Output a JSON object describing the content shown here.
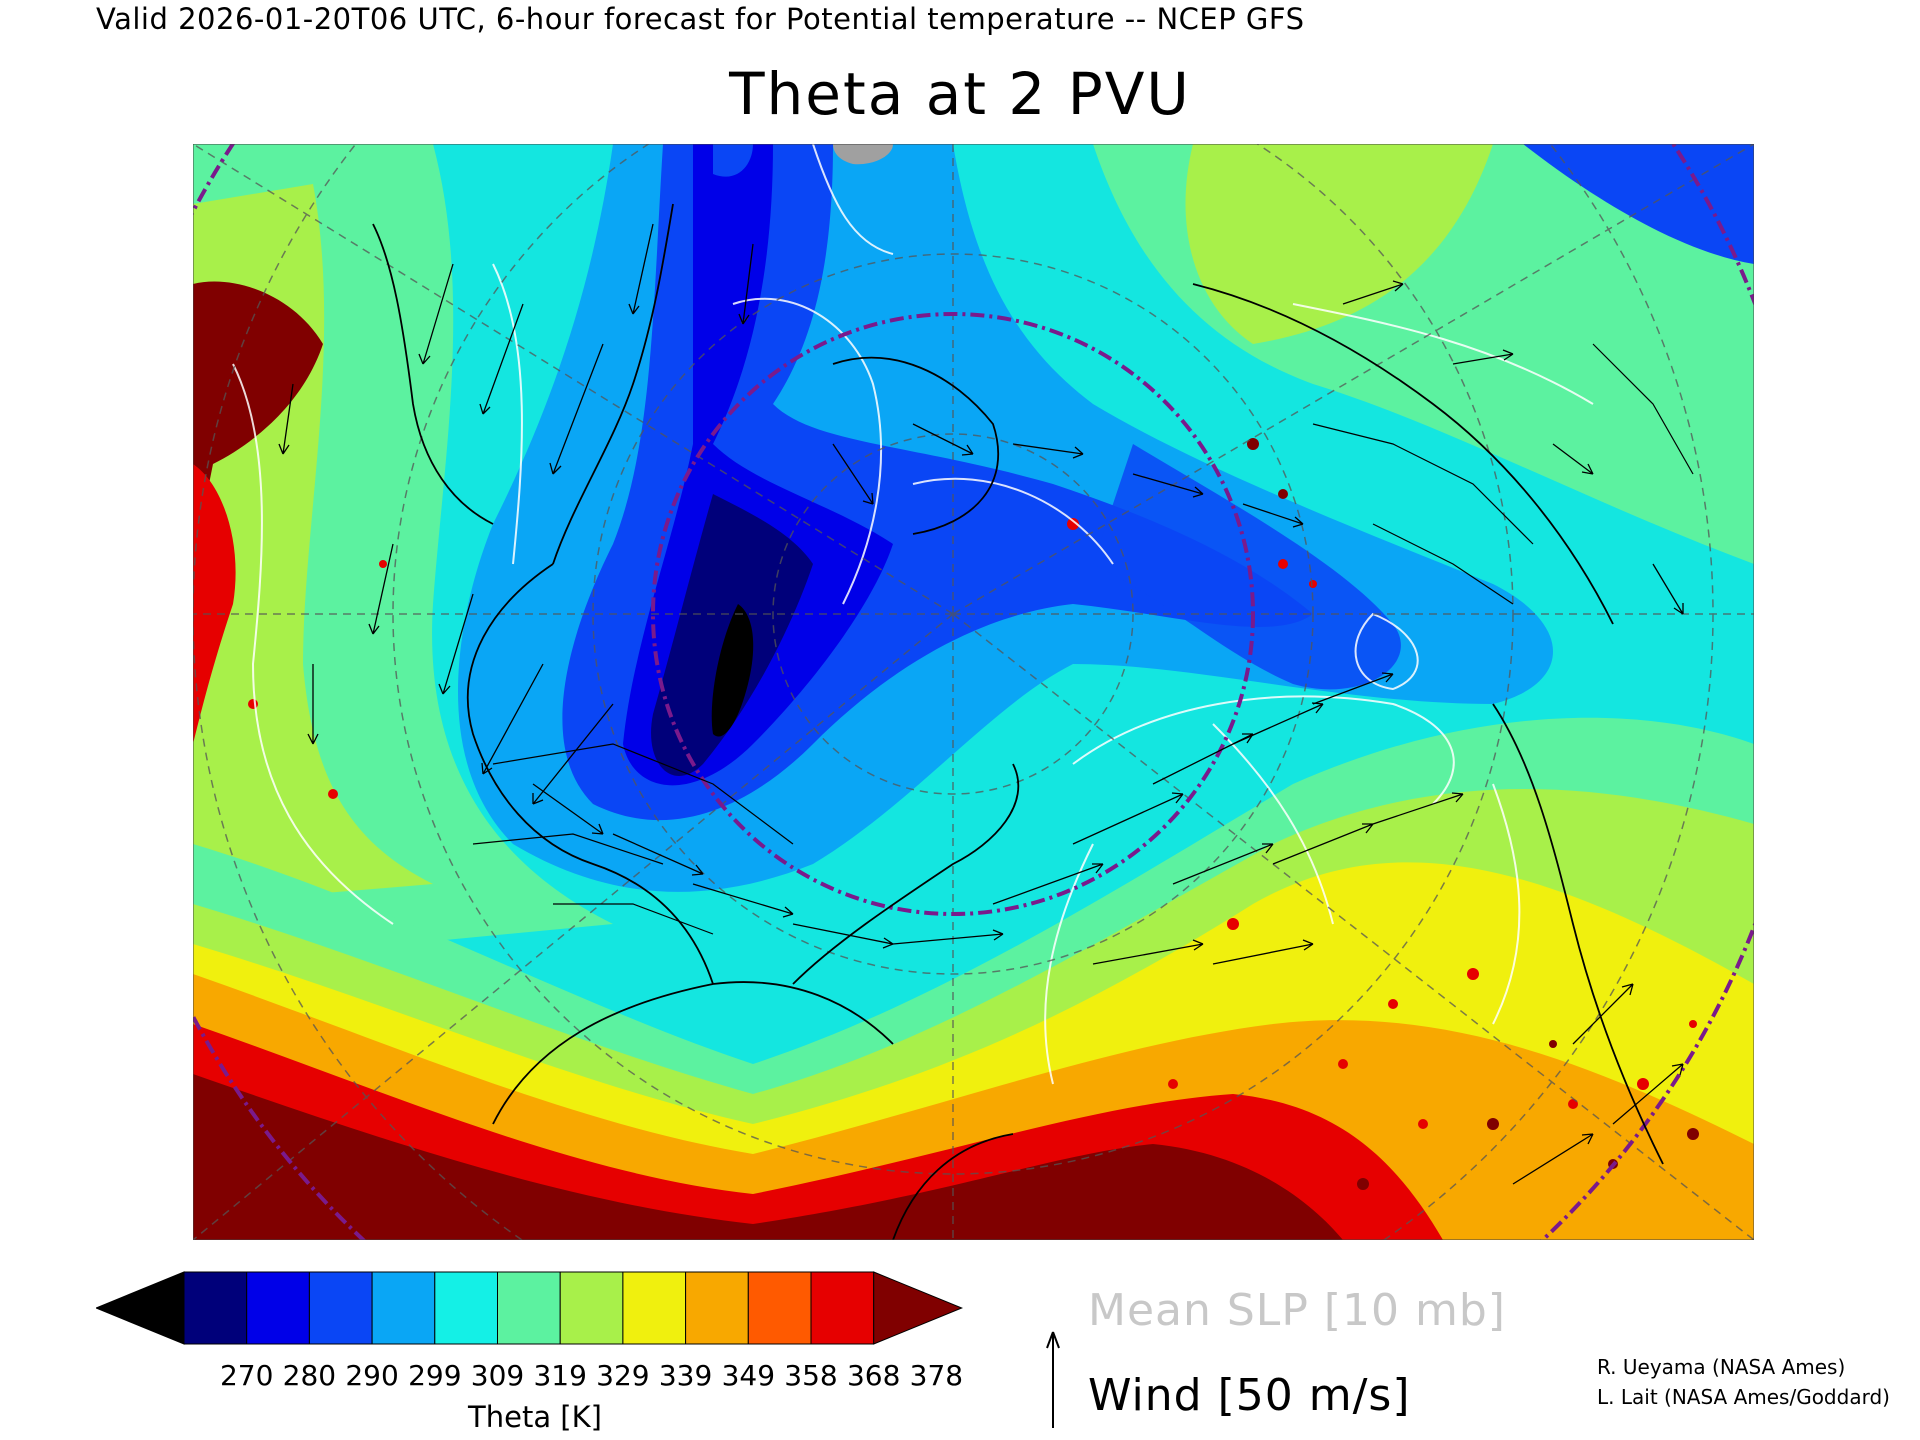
{
  "header": "Valid 2026-01-20T06 UTC, 6-hour forecast for Potential temperature -- NCEP GFS",
  "title": "Theta at 2 PVU",
  "colorbar": {
    "title": "Theta [K]",
    "ticks": [
      "270",
      "280",
      "290",
      "299",
      "309",
      "319",
      "329",
      "339",
      "349",
      "358",
      "368",
      "378"
    ],
    "colors": [
      "#000000",
      "#00007a",
      "#0000e8",
      "#0a46f5",
      "#0aa6f5",
      "#14f0e6",
      "#5cf2a0",
      "#a8f04a",
      "#f0f00e",
      "#f8a800",
      "#ff5a00",
      "#e60000",
      "#800000"
    ]
  },
  "legend": {
    "slp": "Mean SLP [10 mb]",
    "wind": "Wind [50 m/s]"
  },
  "credits": [
    "R. Ueyama (NASA Ames)",
    "L. Lait (NASA Ames/Goddard)"
  ],
  "map": {
    "projection_icon": "north-polar-stereographic-map",
    "background_color": "#14e6e0"
  }
}
